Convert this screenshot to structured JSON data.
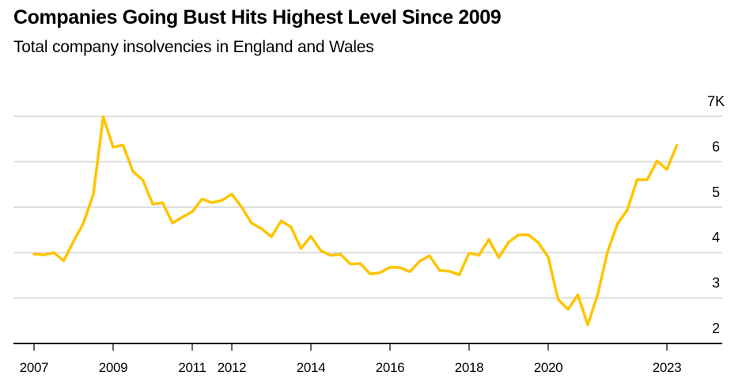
{
  "chart_data": {
    "type": "line",
    "title": "Companies Going Bust Hits Highest Level Since 2009",
    "subtitle": "Total company insolvencies in England and Wales",
    "xlabel": "",
    "ylabel": "",
    "frequency": "quarterly",
    "x_start": "2007 Q1",
    "x_range": [
      2007.0,
      2024.25
    ],
    "ylim": [
      2000,
      7000
    ],
    "y_ticks": [
      2000,
      3000,
      4000,
      5000,
      6000,
      7000
    ],
    "y_tick_labels": [
      "2",
      "3",
      "4",
      "5",
      "6",
      "7K"
    ],
    "x_ticks": [
      2007,
      2009,
      2011,
      2012,
      2014,
      2016,
      2018,
      2020,
      2023
    ],
    "x_tick_labels": [
      "2007",
      "2009",
      "2011",
      "2012",
      "2014",
      "2016",
      "2018",
      "2020",
      "2023"
    ],
    "grid": true,
    "y_axis_side": "right",
    "legend": "none",
    "series": [
      {
        "name": "Total company insolvencies",
        "color": "#FFC400",
        "x": [
          2007.0,
          2007.25,
          2007.5,
          2007.75,
          2008.0,
          2008.25,
          2008.5,
          2008.75,
          2009.0,
          2009.25,
          2009.5,
          2009.75,
          2010.0,
          2010.25,
          2010.5,
          2010.75,
          2011.0,
          2011.25,
          2011.5,
          2011.75,
          2012.0,
          2012.25,
          2012.5,
          2012.75,
          2013.0,
          2013.25,
          2013.5,
          2013.75,
          2014.0,
          2014.25,
          2014.5,
          2014.75,
          2015.0,
          2015.25,
          2015.5,
          2015.75,
          2016.0,
          2016.25,
          2016.5,
          2016.75,
          2017.0,
          2017.25,
          2017.5,
          2017.75,
          2018.0,
          2018.25,
          2018.5,
          2018.75,
          2019.0,
          2019.25,
          2019.5,
          2019.75,
          2020.0,
          2020.25,
          2020.5,
          2020.75,
          2021.0,
          2021.25,
          2021.5,
          2021.75,
          2022.0,
          2022.25,
          2022.5,
          2022.75,
          2023.0,
          2023.25
        ],
        "values": [
          3970,
          3950,
          4000,
          3820,
          4250,
          4650,
          5290,
          6990,
          6320,
          6370,
          5790,
          5600,
          5070,
          5100,
          4650,
          4780,
          4900,
          5180,
          5100,
          5150,
          5290,
          5000,
          4650,
          4530,
          4350,
          4700,
          4560,
          4090,
          4360,
          4040,
          3940,
          3960,
          3750,
          3760,
          3530,
          3560,
          3680,
          3670,
          3580,
          3810,
          3930,
          3610,
          3590,
          3510,
          3990,
          3940,
          4290,
          3890,
          4230,
          4390,
          4390,
          4220,
          3900,
          2970,
          2750,
          3070,
          2410,
          3080,
          4020,
          4630,
          4940,
          5610,
          5600,
          6020,
          5830,
          6360
        ]
      }
    ]
  }
}
